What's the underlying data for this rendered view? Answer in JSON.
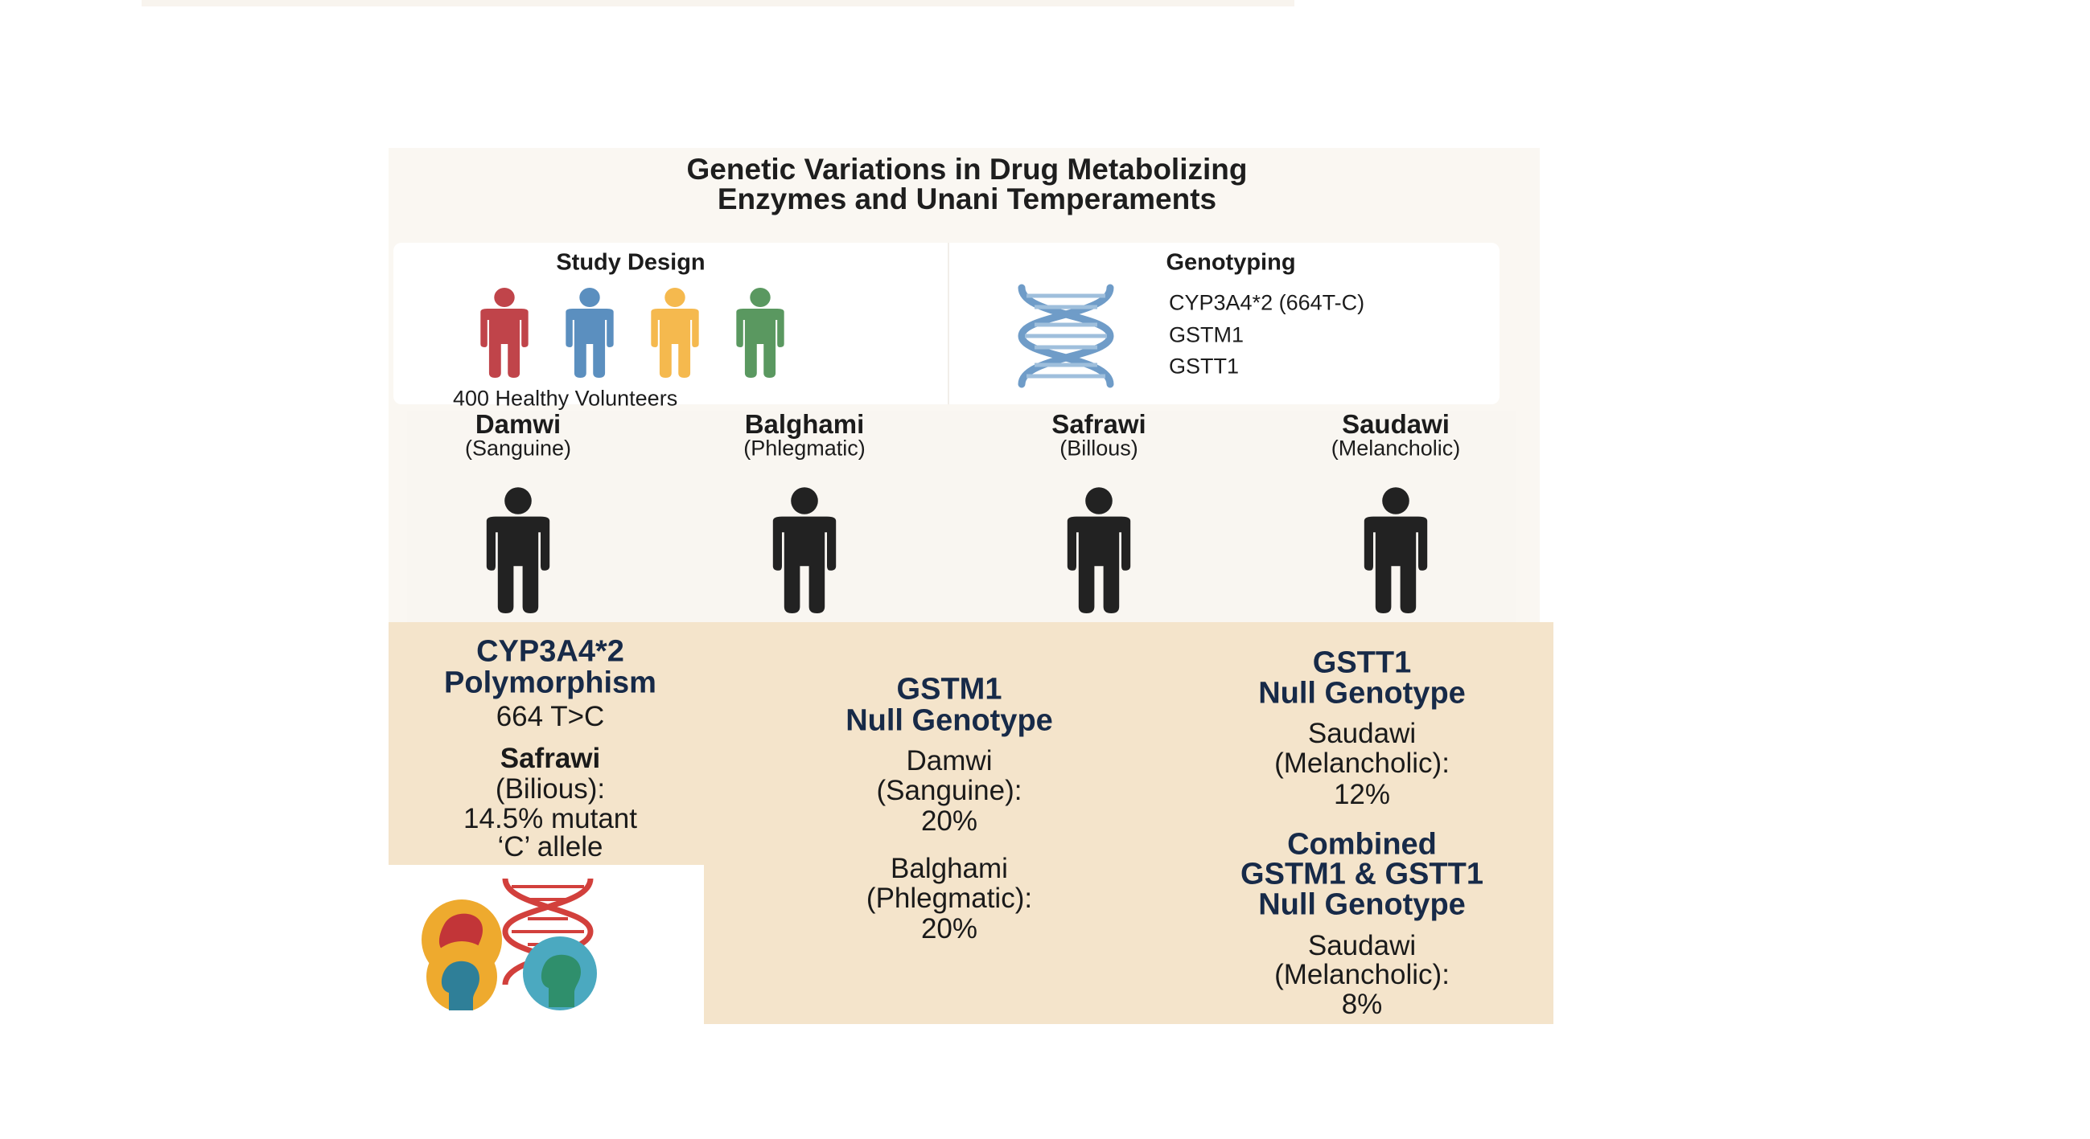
{
  "title": {
    "line1": "Genetic Variations in Drug Metabolizing",
    "line2": "Enzymes and Unani Temperaments"
  },
  "study_design": {
    "label": "Study Design",
    "volunteers": "400 Healthy Volunteers",
    "people_colors": [
      "#c0444a",
      "#5b8fbf",
      "#f5b94e",
      "#5a9860"
    ]
  },
  "genotyping": {
    "label": "Genotyping",
    "genes": [
      "CYP3A4*2 (664T-C)",
      "GSTM1",
      "GSTT1"
    ],
    "dna_color": "#6f9cc8"
  },
  "temperaments": [
    {
      "name": "Damwi",
      "sub": "(Sanguine)"
    },
    {
      "name": "Balghami",
      "sub": "(Phlegmatic)"
    },
    {
      "name": "Safrawi",
      "sub": "(Billous)"
    },
    {
      "name": "Saudawi",
      "sub": "(Melancholic)"
    }
  ],
  "findings": {
    "cyp": {
      "h1": "CYP3A4*2",
      "h2": "Polymorphism",
      "variant": "664 T>C",
      "group": "Safrawi",
      "group_sub": "(Bilious):",
      "value1": "14.5% mutant",
      "value2": "‘C’ allele"
    },
    "gstm1": {
      "h1": "GSTM1",
      "h2": "Null Genotype",
      "a1": "Damwi",
      "a2": "(Sanguine):",
      "a3": "20%",
      "b1": "Balghami",
      "b2": "(Phlegmatic):",
      "b3": "20%"
    },
    "gstt1": {
      "h1": "GSTT1",
      "h2": "Null Genotype",
      "a1": "Saudawi",
      "a2": "(Melancholic):",
      "a3": "12%"
    },
    "combined": {
      "h1": "Combined",
      "h2": "GSTM1 & GSTT1",
      "h3": "Null Genotype",
      "a1": "Saudawi",
      "a2": "(Melancholic):",
      "a3": "8%"
    }
  },
  "colors": {
    "heading": "#172a48",
    "panel_bg": "#f4e4cb"
  }
}
